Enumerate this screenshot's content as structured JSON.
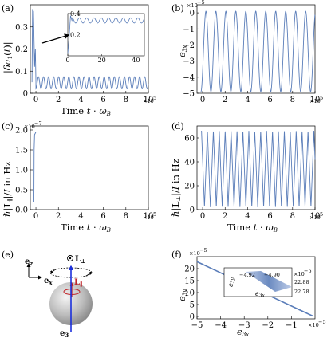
{
  "panel_labels": [
    "(a)",
    "(b)",
    "(c)",
    "(d)",
    "(e)",
    "(f)"
  ],
  "series_color": "#5a7db9",
  "x_exponent": "×10⁵",
  "schematic": {
    "ez": "e",
    "ez_sub": "z",
    "ex": "e",
    "ex_sub": "x",
    "e3": "e",
    "e3_sub": "3",
    "L_perp": "L",
    "L_perp_sub": "⊥",
    "L_par": "L",
    "L_par_sub": "∥",
    "arrow_color": "#1a2fdc",
    "rot_color": "#c0262b"
  },
  "chart_data": [
    {
      "panel": "a",
      "type": "line",
      "ylabel": "|δa₁(t)|",
      "xlabel": "Time t · ω_B",
      "x_exponent": "×10⁵",
      "xlim": [
        -0.5,
        10
      ],
      "ylim": [
        0,
        0.4
      ],
      "xticks": [
        "0",
        "2",
        "4",
        "6",
        "8",
        "10"
      ],
      "yticks": [
        "0",
        "0.1",
        "0.2",
        "0.3"
      ],
      "description_values": {
        "initial_peak": 0.4,
        "oscillation_min": 0.02,
        "oscillation_max": 0.075,
        "period": 0.45
      },
      "inset": {
        "xlim": [
          0,
          45
        ],
        "ylim": [
          0,
          0.4
        ],
        "xticks": [
          "0",
          "20",
          "40"
        ],
        "yticks": [
          "0.2",
          "0.4"
        ],
        "osc_min": 0.31,
        "osc_max": 0.36
      }
    },
    {
      "panel": "b",
      "type": "line",
      "ylabel": "e₃ₓ",
      "y_exponent": "×10⁻⁵",
      "xlabel": "",
      "x_exponent": "×10⁵",
      "xlim": [
        -0.5,
        10
      ],
      "ylim": [
        -5,
        0.5
      ],
      "xticks": [
        "0",
        "2",
        "4",
        "6",
        "8",
        "10"
      ],
      "yticks": [
        "0",
        "−1",
        "−2",
        "−3",
        "−4",
        "−5"
      ],
      "oscillation": {
        "min": -4.9,
        "max": 0.1,
        "cycles": 11.5
      }
    },
    {
      "panel": "c",
      "type": "line",
      "ylabel": "ℏ|L∥|/I in Hz",
      "y_exponent": "×10⁻⁷",
      "xlabel": "Time t · ω_B",
      "x_exponent": "×10⁵",
      "xlim": [
        -0.5,
        10
      ],
      "ylim": [
        0,
        2.1
      ],
      "xticks": [
        "0",
        "2",
        "4",
        "6",
        "8",
        "10"
      ],
      "yticks": [
        "0.0",
        "0.5",
        "1.0",
        "1.5",
        "2.0"
      ],
      "plateau": 1.95
    },
    {
      "panel": "d",
      "type": "line",
      "ylabel": "ℏ|L⊥|/I in Hz",
      "xlabel": "Time t · ω_B",
      "x_exponent": "×10⁵",
      "xlim": [
        -0.5,
        10
      ],
      "ylim": [
        0,
        70
      ],
      "xticks": [
        "0",
        "2",
        "4",
        "6",
        "8",
        "10"
      ],
      "yticks": [
        "0",
        "20",
        "40",
        "60"
      ],
      "oscillation": {
        "min": 2,
        "max": 66,
        "cycles": 19
      }
    },
    {
      "panel": "f",
      "type": "line",
      "xlabel": "e₃ₓ",
      "ylabel": "e₃ᵧ",
      "x_exponent": "×10⁻⁵",
      "y_exponent": "×10⁻⁵",
      "xlim": [
        -5,
        0
      ],
      "ylim": [
        -1,
        25
      ],
      "xticks": [
        "−5",
        "−4",
        "−3",
        "−2",
        "−1"
      ],
      "yticks": [
        "0",
        "5",
        "10",
        "15",
        "20"
      ],
      "line": [
        [
          -5,
          22.9
        ],
        [
          -0.1,
          0.2
        ]
      ],
      "inset": {
        "xlabel": "e₃ₓ",
        "ylabel": "e₃ᵧ",
        "x_exponent": "×10⁻⁵",
        "xticks": [
          "−4.92",
          "−4.90"
        ],
        "yticks": [
          "22.88",
          "22.78"
        ]
      }
    }
  ]
}
